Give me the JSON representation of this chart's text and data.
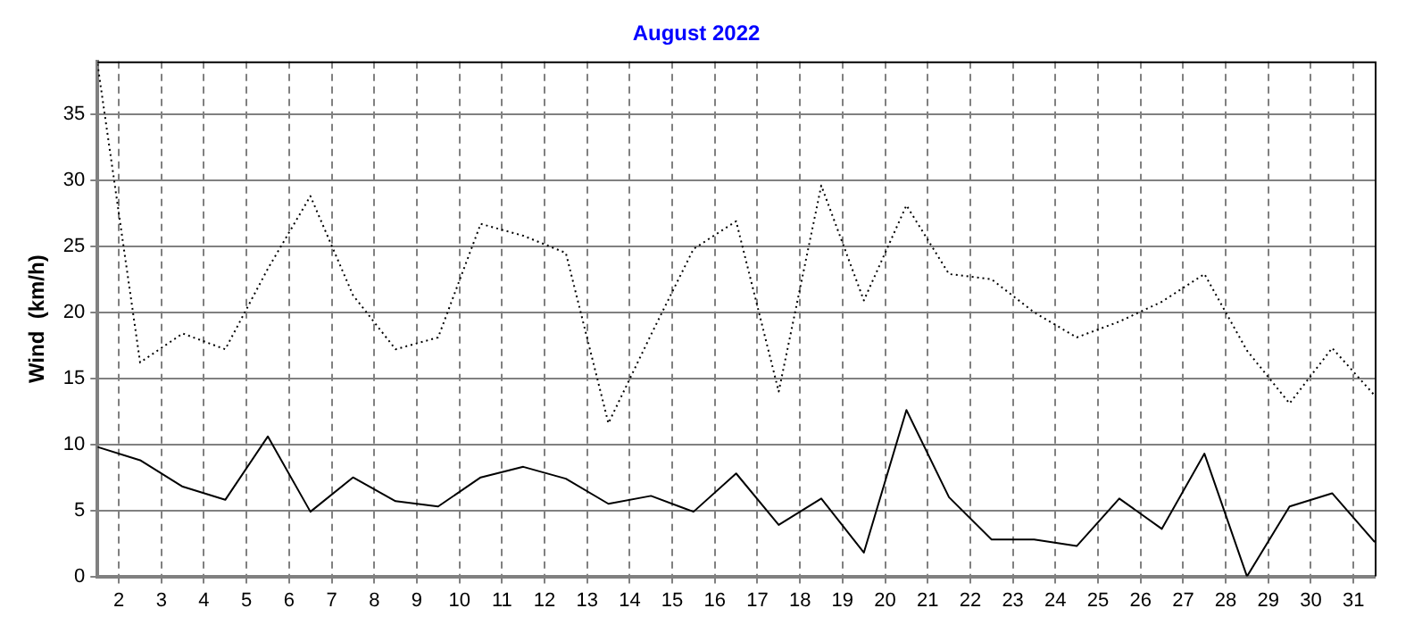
{
  "chart_data": {
    "type": "line",
    "title": "August 2022",
    "ylabel": "Wind  (km/h)",
    "x": [
      1.5,
      2.5,
      3.5,
      4.5,
      5.5,
      6.5,
      7.5,
      8.5,
      9.5,
      10.5,
      11.5,
      12.5,
      13.5,
      14.5,
      15.5,
      16.5,
      17.5,
      18.5,
      19.5,
      20.5,
      21.5,
      22.5,
      23.5,
      24.5,
      25.5,
      26.5,
      27.5,
      28.5,
      29.5,
      30.5,
      31.5
    ],
    "series": [
      {
        "color": "#000000",
        "line_style": "dotted",
        "values": [
          38.8,
          16.2,
          18.4,
          17.2,
          23.3,
          28.8,
          21.3,
          17.2,
          18.1,
          26.7,
          25.8,
          24.5,
          11.6,
          18.3,
          24.8,
          26.9,
          14.0,
          29.6,
          20.9,
          28.1,
          22.9,
          22.5,
          20.0,
          18.1,
          19.3,
          20.8,
          22.9,
          17.1,
          13.1,
          17.3,
          13.7
        ]
      },
      {
        "color": "#000000",
        "line_style": "solid",
        "values": [
          9.8,
          8.8,
          6.8,
          5.8,
          10.6,
          4.9,
          7.5,
          5.7,
          5.3,
          7.5,
          8.3,
          7.4,
          5.5,
          6.1,
          4.9,
          7.8,
          3.9,
          5.9,
          1.8,
          12.6,
          6.0,
          2.8,
          2.8,
          2.3,
          5.9,
          3.6,
          9.3,
          0,
          5.3,
          6.3,
          2.6
        ]
      }
    ],
    "xlim": [
      1.5,
      31.5
    ],
    "xticks": [
      2,
      3,
      4,
      5,
      6,
      7,
      8,
      9,
      10,
      11,
      12,
      13,
      14,
      15,
      16,
      17,
      18,
      19,
      20,
      21,
      22,
      23,
      24,
      25,
      26,
      27,
      28,
      29,
      30,
      31
    ],
    "ylim": [
      0,
      39
    ],
    "yticks": [
      0,
      5,
      10,
      15,
      20,
      25,
      30,
      35
    ],
    "grid": true,
    "legend": false,
    "marker": "none"
  }
}
